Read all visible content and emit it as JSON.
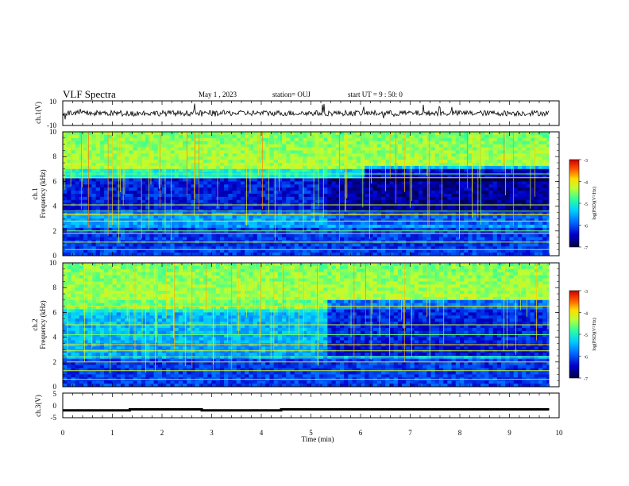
{
  "header": {
    "title": "VLF Spectra",
    "date": "May 1 , 2023",
    "station": "station= OUJ",
    "start": "start UT = 9 : 50: 0"
  },
  "chart_data": [
    {
      "type": "line",
      "title": "",
      "ylabel": "ch.1(V)",
      "xlim": [
        0,
        10
      ],
      "ylim": [
        -10,
        10
      ],
      "yticks": [
        "10",
        "-10"
      ],
      "description_values": {
        "baseline": 0,
        "typical_amplitude": 2
      }
    },
    {
      "type": "heatmap",
      "ylabel": "ch.1\nFrequency (kHz)",
      "ylabel_line1": "ch.1",
      "ylabel_line2": "Frequency (kHz)",
      "xlim": [
        0,
        10
      ],
      "ylim": [
        0,
        10
      ],
      "yticks": [
        "0",
        "2",
        "4",
        "6",
        "8",
        "10"
      ],
      "colorbar": {
        "label": "log(PSD)(V²/Hz)",
        "range": [
          -7,
          -3
        ],
        "ticks": [
          "-3",
          "-4",
          "-5",
          "-6",
          "-7"
        ]
      }
    },
    {
      "type": "heatmap",
      "ylabel": "ch.2\nFrequency (kHz)",
      "ylabel_line1": "ch.2",
      "ylabel_line2": "Frequency (kHz)",
      "xlim": [
        0,
        10
      ],
      "ylim": [
        0,
        10
      ],
      "yticks": [
        "0",
        "2",
        "4",
        "6",
        "8",
        "10"
      ],
      "colorbar": {
        "label": "log(PSD)(V²/Hz)",
        "range": [
          -7,
          -3
        ],
        "ticks": [
          "-3",
          "-4",
          "-5",
          "-6",
          "-7"
        ]
      }
    },
    {
      "type": "line",
      "ylabel": "ch.3(V)",
      "xlim": [
        0,
        10
      ],
      "ylim": [
        -5,
        5
      ],
      "yticks": [
        "5",
        "0",
        "-5"
      ],
      "x": [
        0,
        1.35,
        1.35,
        2.8,
        2.8,
        4.4,
        4.4,
        9.8
      ],
      "y": [
        -2,
        -2,
        -1.6,
        -1.6,
        -2,
        -2,
        -1.6,
        -1.6
      ]
    }
  ],
  "xaxis": {
    "label": "Time (min)",
    "ticks": [
      "0",
      "1",
      "2",
      "3",
      "4",
      "5",
      "6",
      "7",
      "8",
      "9",
      "10"
    ]
  },
  "colors": {
    "colormap": [
      "#000044",
      "#0000cc",
      "#0066ff",
      "#00d0ff",
      "#33ff99",
      "#bbff33",
      "#ffdd00",
      "#ff5500",
      "#cc0000"
    ]
  }
}
